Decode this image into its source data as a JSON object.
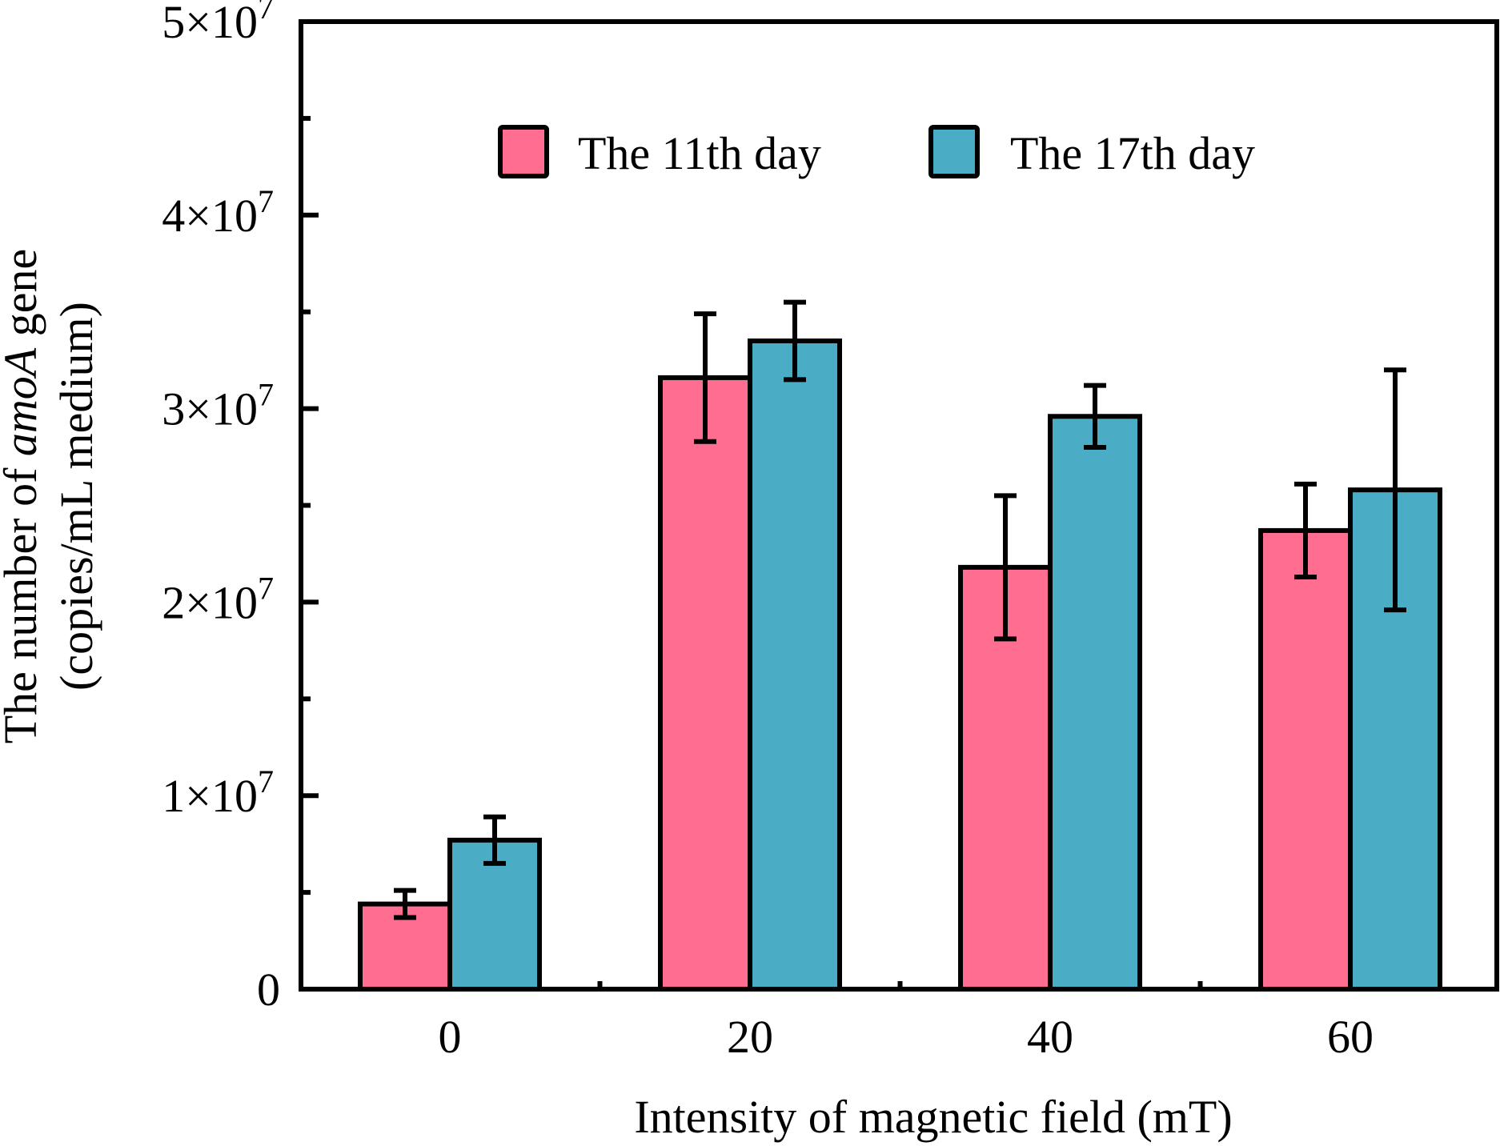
{
  "chart_data": {
    "type": "bar",
    "title": "",
    "xlabel": "Intensity of magnetic field (mT)",
    "ylabel": {
      "line1_prefix": "The number of ",
      "line1_italic": "amoA",
      "line1_suffix": " gene",
      "line2": "(copies/mL medium)"
    },
    "categories": [
      "0",
      "20",
      "40",
      "60"
    ],
    "ylim": [
      0,
      50000000
    ],
    "yticks": [
      {
        "value": 0,
        "mantissa": "0",
        "exponent": ""
      },
      {
        "value": 10000000,
        "mantissa": "1",
        "exponent": "7"
      },
      {
        "value": 20000000,
        "mantissa": "2",
        "exponent": "7"
      },
      {
        "value": 30000000,
        "mantissa": "3",
        "exponent": "7"
      },
      {
        "value": 40000000,
        "mantissa": "4",
        "exponent": "7"
      },
      {
        "value": 50000000,
        "mantissa": "5",
        "exponent": "7"
      }
    ],
    "ytick_times": "×10",
    "y_minor_step": 5000000,
    "grid": false,
    "legend_position": "top-center",
    "series": [
      {
        "name": "The 11th day",
        "color": "#FF6E91",
        "values": [
          4400000,
          31600000,
          21800000,
          23700000
        ],
        "errors": [
          700000,
          3300000,
          3700000,
          2400000
        ]
      },
      {
        "name": "The 17th day",
        "color": "#4BACC6",
        "values": [
          7700000,
          33500000,
          29600000,
          25800000
        ],
        "errors": [
          1200000,
          2000000,
          1600000,
          6200000
        ]
      }
    ]
  }
}
